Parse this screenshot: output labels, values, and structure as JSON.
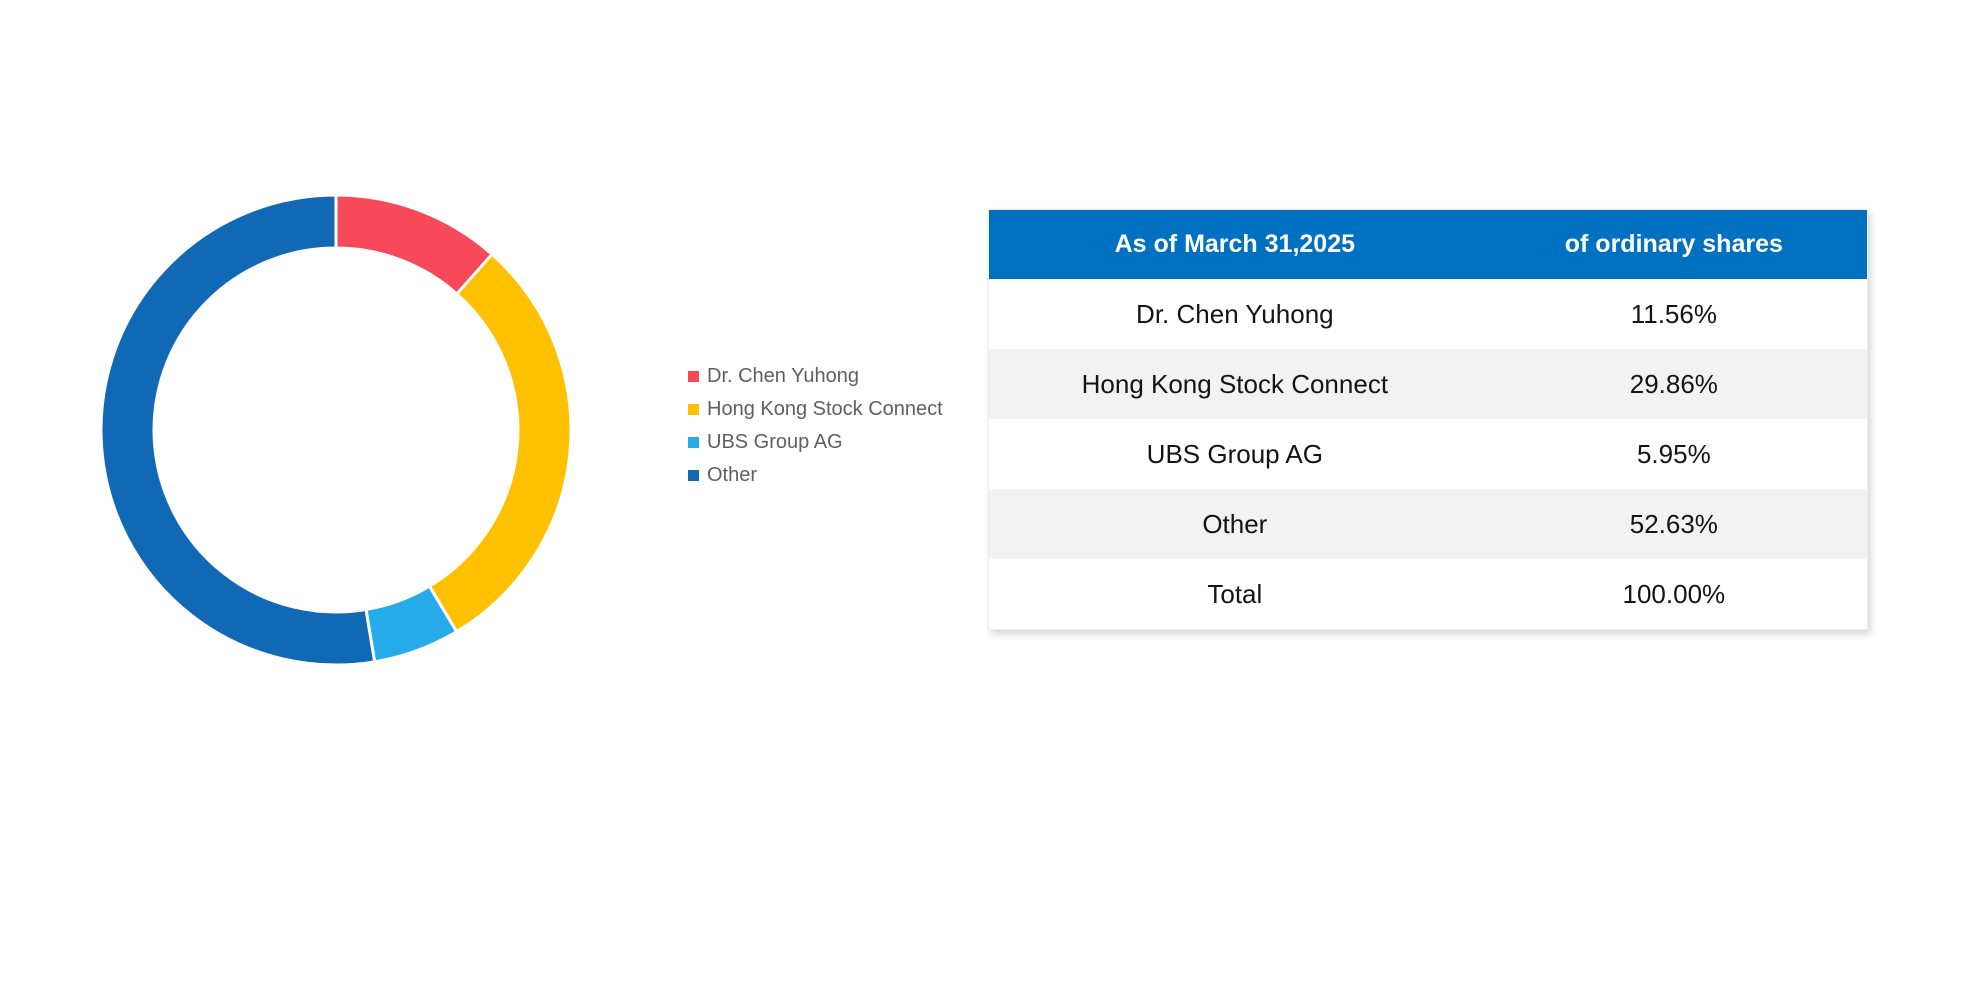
{
  "colors": {
    "accent_red": "#F7495A",
    "accent_yellow": "#FFC000",
    "accent_light_blue": "#25ABEA",
    "accent_dark_blue": "#1169B5",
    "table_header_bg": "#0070C0",
    "table_header_text": "#FFFFFF",
    "table_row_alt_bg": "#F2F2F2",
    "legend_text": "#5F5F5F"
  },
  "chart_data": {
    "type": "pie",
    "subtype": "donut",
    "title": "",
    "categories": [
      "Dr. Chen Yuhong",
      "Hong Kong Stock Connect",
      "UBS Group AG",
      "Other"
    ],
    "values": [
      11.56,
      29.86,
      5.95,
      52.63
    ],
    "colors": [
      "#F7495A",
      "#FFC000",
      "#25ABEA",
      "#1169B5"
    ],
    "start_angle_deg": 0,
    "direction": "clockwise",
    "outer_radius_px": 236,
    "inner_radius_px": 181,
    "legend_position": "right"
  },
  "legend": {
    "items": [
      {
        "label": "Dr. Chen Yuhong",
        "color": "#F7495A"
      },
      {
        "label": "Hong Kong Stock Connect",
        "color": "#FFC000"
      },
      {
        "label": "UBS Group AG",
        "color": "#25ABEA"
      },
      {
        "label": "Other",
        "color": "#1169B5"
      }
    ]
  },
  "table": {
    "headers": [
      "As of March 31,2025",
      "of ordinary shares"
    ],
    "rows": [
      {
        "label": "Dr. Chen Yuhong",
        "value": "11.56%"
      },
      {
        "label": "Hong Kong Stock Connect",
        "value": "29.86%"
      },
      {
        "label": "UBS Group AG",
        "value": "5.95%"
      },
      {
        "label": "Other",
        "value": "52.63%"
      },
      {
        "label": "Total",
        "value": "100.00%"
      }
    ]
  }
}
